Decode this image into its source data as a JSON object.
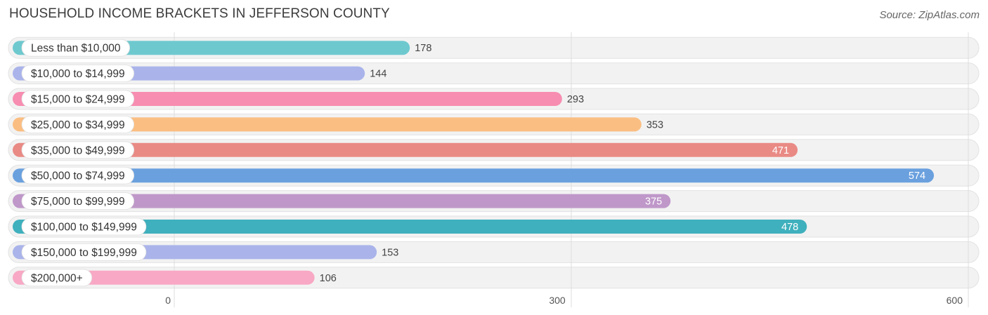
{
  "chart_data": {
    "type": "bar",
    "orientation": "horizontal",
    "title": "HOUSEHOLD INCOME BRACKETS IN JEFFERSON COUNTY",
    "source": "Source: ZipAtlas.com",
    "categories": [
      "Less than $10,000",
      "$10,000 to $14,999",
      "$15,000 to $24,999",
      "$25,000 to $34,999",
      "$35,000 to $49,999",
      "$50,000 to $74,999",
      "$75,000 to $99,999",
      "$100,000 to $149,999",
      "$150,000 to $199,999",
      "$200,000+"
    ],
    "values": [
      178,
      144,
      293,
      353,
      471,
      574,
      375,
      478,
      153,
      106
    ],
    "value_labels": [
      "178",
      "144",
      "293",
      "353",
      "471",
      "574",
      "375",
      "478",
      "153",
      "106"
    ],
    "colors": [
      "#6ec9cf",
      "#aab4ea",
      "#f78db0",
      "#fbbe82",
      "#e98a85",
      "#6aa0de",
      "#bf97c9",
      "#3fb0bd",
      "#aab4ea",
      "#f8a8c4"
    ],
    "xlim": [
      0,
      600
    ],
    "xticks": [
      0,
      300,
      600
    ],
    "xtick_labels": [
      "0",
      "300",
      "600"
    ],
    "grid": true,
    "legend": "none"
  }
}
